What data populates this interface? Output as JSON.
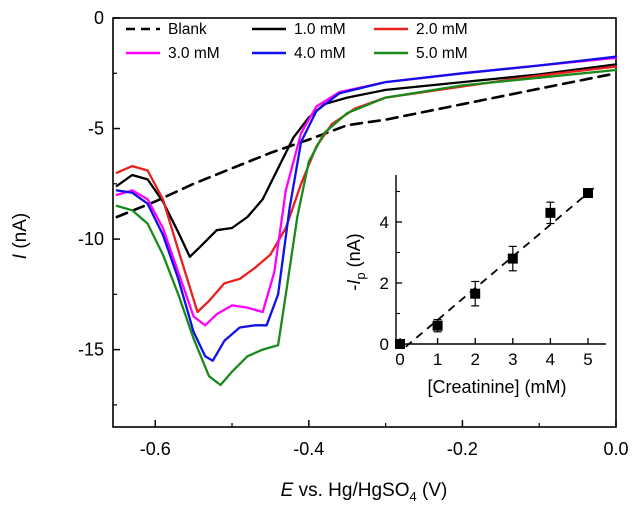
{
  "chart_data": [
    {
      "type": "line",
      "xlabel": {
        "italic": "E",
        "rest": " vs. Hg/HgSO",
        "sub": "4",
        "unit": " (V)"
      },
      "ylabel": {
        "italic": "I",
        "rest": " (nA)"
      },
      "xlim": [
        -0.655,
        0.0
      ],
      "ylim": [
        -18.5,
        0.0
      ],
      "xticks": [
        -0.6,
        -0.4,
        -0.2,
        0.0
      ],
      "xtick_labels": [
        "-0.6",
        "-0.4",
        "-0.2",
        "0.0"
      ],
      "yticks": [
        0,
        -5,
        -10,
        -15
      ],
      "ytick_labels": [
        "0",
        "-5",
        "-10",
        "-15"
      ],
      "legend_position": "top",
      "series": [
        {
          "name": "Blank",
          "color": "#000000",
          "dash": true,
          "x": [
            -0.65,
            -0.6,
            -0.55,
            -0.5,
            -0.45,
            -0.4,
            -0.35,
            -0.3,
            -0.2,
            -0.1,
            0.0
          ],
          "y": [
            -9.0,
            -8.3,
            -7.5,
            -6.8,
            -6.1,
            -5.5,
            -4.85,
            -4.6,
            -3.9,
            -3.2,
            -2.5
          ]
        },
        {
          "name": "1.0 mM",
          "color": "#000000",
          "dash": false,
          "x": [
            -0.65,
            -0.63,
            -0.61,
            -0.59,
            -0.57,
            -0.555,
            -0.54,
            -0.52,
            -0.5,
            -0.48,
            -0.46,
            -0.44,
            -0.42,
            -0.4,
            -0.38,
            -0.35,
            -0.3,
            -0.2,
            -0.1,
            0.0
          ],
          "y": [
            -7.6,
            -7.1,
            -7.3,
            -8.3,
            -9.7,
            -10.8,
            -10.3,
            -9.6,
            -9.5,
            -9.0,
            -8.2,
            -6.8,
            -5.4,
            -4.5,
            -3.9,
            -3.6,
            -3.25,
            -2.9,
            -2.55,
            -2.1
          ]
        },
        {
          "name": "2.0 mM",
          "color": "#e8201e",
          "dash": false,
          "x": [
            -0.65,
            -0.63,
            -0.61,
            -0.59,
            -0.57,
            -0.545,
            -0.53,
            -0.51,
            -0.49,
            -0.47,
            -0.45,
            -0.43,
            -0.41,
            -0.39,
            -0.37,
            -0.34,
            -0.3,
            -0.2,
            -0.1,
            0.0
          ],
          "y": [
            -7.0,
            -6.7,
            -6.9,
            -8.2,
            -10.5,
            -13.3,
            -12.8,
            -12.0,
            -11.8,
            -11.3,
            -10.7,
            -9.5,
            -7.5,
            -5.8,
            -4.8,
            -4.1,
            -3.6,
            -3.1,
            -2.6,
            -2.2
          ]
        },
        {
          "name": "3.0 mM",
          "color": "#ff00ff",
          "dash": false,
          "x": [
            -0.65,
            -0.63,
            -0.61,
            -0.59,
            -0.57,
            -0.55,
            -0.535,
            -0.52,
            -0.5,
            -0.48,
            -0.46,
            -0.445,
            -0.43,
            -0.41,
            -0.39,
            -0.36,
            -0.3,
            -0.2,
            -0.1,
            0.0
          ],
          "y": [
            -8.0,
            -7.8,
            -8.2,
            -9.5,
            -11.5,
            -13.5,
            -13.9,
            -13.4,
            -13.0,
            -13.1,
            -13.3,
            -11.5,
            -7.8,
            -5.2,
            -4.0,
            -3.35,
            -2.9,
            -2.5,
            -2.15,
            -1.8
          ]
        },
        {
          "name": "4.0 mM",
          "color": "#1010e8",
          "dash": false,
          "x": [
            -0.65,
            -0.63,
            -0.61,
            -0.59,
            -0.57,
            -0.55,
            -0.535,
            -0.525,
            -0.51,
            -0.49,
            -0.47,
            -0.455,
            -0.44,
            -0.425,
            -0.41,
            -0.39,
            -0.36,
            -0.3,
            -0.2,
            -0.1,
            0.0
          ],
          "y": [
            -7.8,
            -7.9,
            -8.4,
            -9.8,
            -11.8,
            -14.2,
            -15.3,
            -15.5,
            -14.6,
            -14.0,
            -13.9,
            -13.9,
            -12.5,
            -8.6,
            -5.6,
            -4.2,
            -3.4,
            -2.9,
            -2.5,
            -2.15,
            -1.75
          ]
        },
        {
          "name": "5.0 mM",
          "color": "#1a8a1a",
          "dash": false,
          "x": [
            -0.65,
            -0.63,
            -0.61,
            -0.59,
            -0.57,
            -0.55,
            -0.53,
            -0.515,
            -0.5,
            -0.48,
            -0.46,
            -0.44,
            -0.43,
            -0.415,
            -0.4,
            -0.38,
            -0.35,
            -0.3,
            -0.2,
            -0.1,
            0.0
          ],
          "y": [
            -8.5,
            -8.7,
            -9.3,
            -10.7,
            -12.5,
            -14.5,
            -16.2,
            -16.6,
            -16.0,
            -15.3,
            -15.0,
            -14.8,
            -12.5,
            -9.0,
            -6.5,
            -5.2,
            -4.3,
            -3.6,
            -3.05,
            -2.7,
            -2.35
          ]
        }
      ]
    },
    {
      "type": "scatter",
      "xlabel": "[Creatinine] (mM)",
      "ylabel": {
        "neg": "-",
        "italic": "I",
        "sub": "p",
        "unit": " (nA)"
      },
      "xlim": [
        0,
        5.4
      ],
      "ylim": [
        0,
        5.4
      ],
      "xticks": [
        0,
        1,
        2,
        3,
        4,
        5
      ],
      "xtick_labels": [
        "0",
        "1",
        "2",
        "3",
        "4",
        "5"
      ],
      "yticks": [
        0,
        2,
        4
      ],
      "ytick_labels": [
        "0",
        "2",
        "4"
      ],
      "points": [
        {
          "x": 0,
          "y": 0.0,
          "err": 0.0
        },
        {
          "x": 1,
          "y": 0.6,
          "err": 0.2
        },
        {
          "x": 2,
          "y": 1.65,
          "err": 0.4
        },
        {
          "x": 3,
          "y": 2.8,
          "err": 0.4
        },
        {
          "x": 4,
          "y": 4.3,
          "err": 0.35
        },
        {
          "x": 5,
          "y": 4.95,
          "err": 0.0
        }
      ],
      "fit": {
        "slope": 1.04,
        "intercept": -0.25,
        "x_range": [
          0.15,
          5.2
        ]
      }
    }
  ]
}
